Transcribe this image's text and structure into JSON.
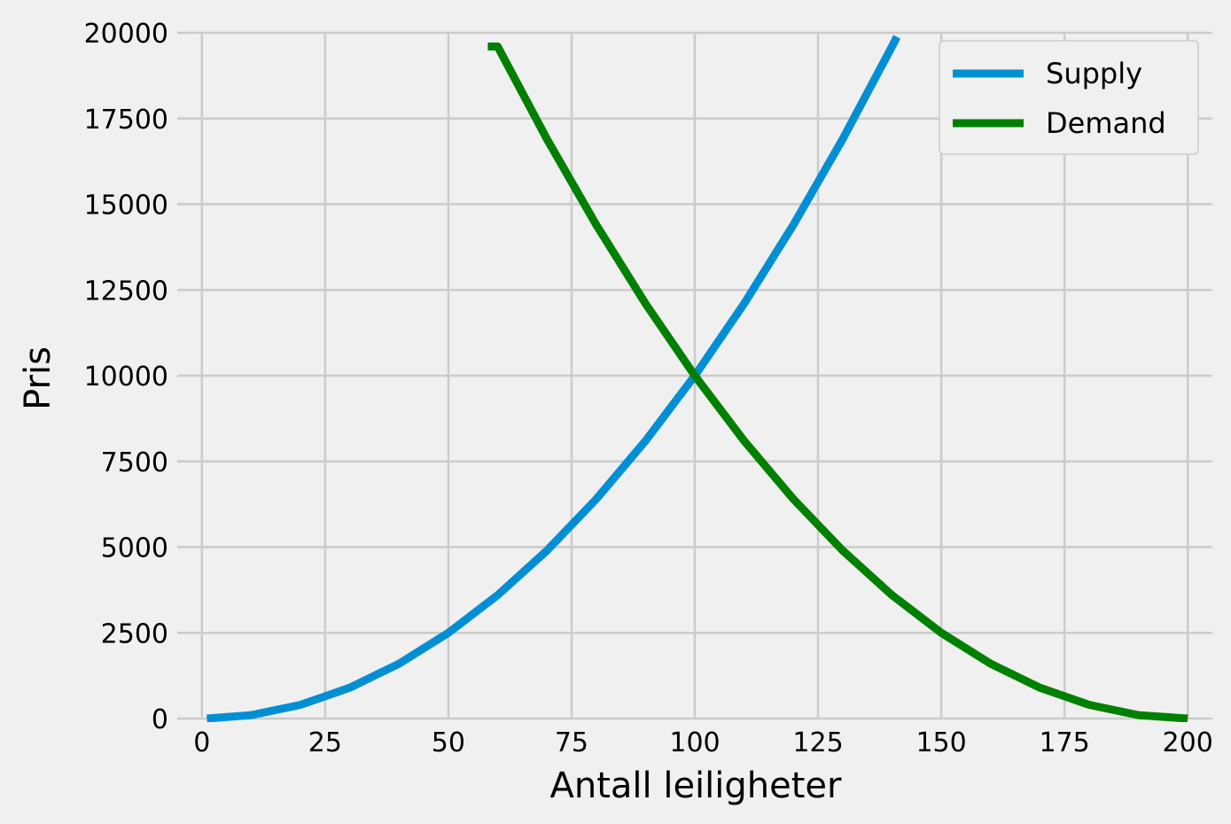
{
  "chart_data": {
    "type": "line",
    "title": "",
    "xlabel": "Antall leiligheter",
    "ylabel": "Pris",
    "xlim": [
      -5,
      205
    ],
    "ylim": [
      0,
      20000
    ],
    "x_ticks": [
      0,
      25,
      50,
      75,
      100,
      125,
      150,
      175,
      200
    ],
    "y_ticks": [
      0,
      2500,
      5000,
      7500,
      10000,
      12500,
      15000,
      17500,
      20000
    ],
    "grid": true,
    "legend_position": "top-right",
    "series": [
      {
        "name": "Supply",
        "color": "#008fd5",
        "x": [
          1,
          10,
          20,
          30,
          40,
          50,
          60,
          70,
          80,
          90,
          100,
          110,
          120,
          130,
          140,
          141
        ],
        "y": [
          1,
          100,
          400,
          900,
          1600,
          2500,
          3600,
          4900,
          6400,
          8100,
          10000,
          12100,
          14400,
          16900,
          19600,
          19881
        ]
      },
      {
        "name": "Demand",
        "color": "#008000",
        "x": [
          58,
          60,
          70,
          80,
          90,
          100,
          110,
          120,
          130,
          140,
          150,
          160,
          170,
          180,
          190,
          200
        ],
        "y": [
          19600,
          19600,
          16900,
          14400,
          12100,
          10000,
          8100,
          6400,
          4900,
          3600,
          2500,
          1600,
          900,
          400,
          100,
          0
        ]
      }
    ]
  }
}
